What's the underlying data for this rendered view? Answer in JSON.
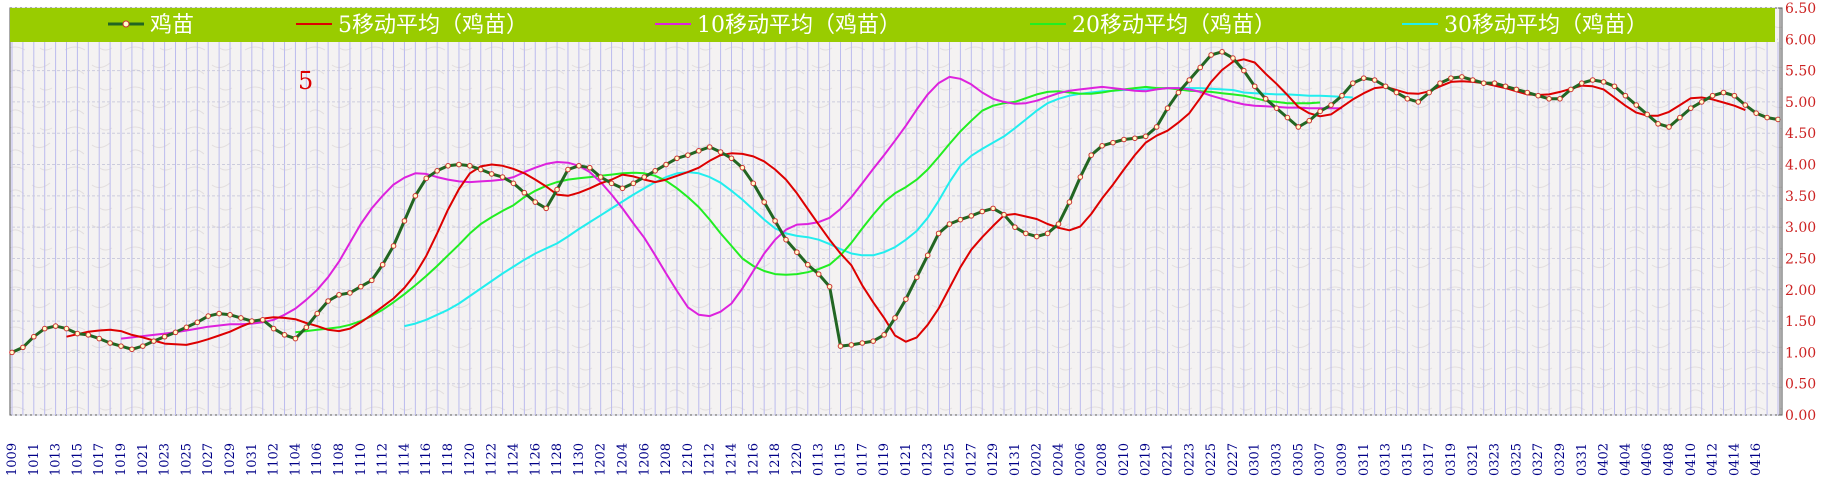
{
  "chart_data": {
    "type": "line",
    "annotation": "5",
    "ylim": [
      0,
      6.5
    ],
    "y_ticks": [
      "0.00",
      "0.50",
      "1.00",
      "1.50",
      "2.00",
      "2.50",
      "3.00",
      "3.50",
      "4.00",
      "4.50",
      "5.00",
      "5.50",
      "6.00",
      "6.50"
    ],
    "x_tick_labels": [
      "1009",
      "1011",
      "1013",
      "1015",
      "1017",
      "1019",
      "1021",
      "1023",
      "1025",
      "1027",
      "1029",
      "1031",
      "1102",
      "1104",
      "1106",
      "1108",
      "1110",
      "1112",
      "1114",
      "1116",
      "1118",
      "1120",
      "1122",
      "1124",
      "1126",
      "1128",
      "1130",
      "1202",
      "1204",
      "1206",
      "1208",
      "1210",
      "1212",
      "1214",
      "1216",
      "1218",
      "1220",
      "0113",
      "0115",
      "0117",
      "0119",
      "0121",
      "0123",
      "0125",
      "0127",
      "0129",
      "0131",
      "0202",
      "0204",
      "0206",
      "0208",
      "0210",
      "0219",
      "0221",
      "0223",
      "0225",
      "0227",
      "0301",
      "0303",
      "0305",
      "0307",
      "0309",
      "0311",
      "0313",
      "0315",
      "0317",
      "0319",
      "0321",
      "0323",
      "0325",
      "0327",
      "0329",
      "0331",
      "0402",
      "0404",
      "0406",
      "0408",
      "0410",
      "0412",
      "0414",
      "0416"
    ],
    "colors": {
      "band": "#99cc00",
      "grid": "#bbbbee",
      "axis_text": "#cc2222",
      "x_text": "#000088",
      "base": "#226622",
      "ma5": "#dd0000",
      "ma10": "#dd22dd",
      "ma20": "#22ee22",
      "ma30": "#22eeee"
    },
    "legend": [
      "鸡苗",
      "5移动平均（鸡苗）",
      "10移动平均（鸡苗）",
      "20移动平均（鸡苗）",
      "30移动平均（鸡苗）"
    ],
    "series": [
      {
        "name": "鸡苗",
        "color": "#226622",
        "values": [
          1.0,
          1.08,
          1.25,
          1.38,
          1.42,
          1.38,
          1.3,
          1.28,
          1.22,
          1.15,
          1.1,
          1.05,
          1.1,
          1.18,
          1.25,
          1.32,
          1.4,
          1.48,
          1.58,
          1.62,
          1.6,
          1.55,
          1.5,
          1.52,
          1.38,
          1.28,
          1.22,
          1.4,
          1.62,
          1.82,
          1.92,
          1.95,
          2.05,
          2.15,
          2.4,
          2.7,
          3.1,
          3.5,
          3.78,
          3.9,
          3.98,
          4.0,
          3.98,
          3.92,
          3.85,
          3.8,
          3.7,
          3.55,
          3.4,
          3.3,
          3.6,
          3.92,
          3.98,
          3.95,
          3.8,
          3.7,
          3.62,
          3.7,
          3.8,
          3.9,
          4.0,
          4.1,
          4.15,
          4.22,
          4.28,
          4.2,
          4.1,
          3.95,
          3.7,
          3.4,
          3.1,
          2.8,
          2.6,
          2.4,
          2.25,
          2.05,
          1.1,
          1.12,
          1.15,
          1.18,
          1.28,
          1.55,
          1.85,
          2.2,
          2.55,
          2.9,
          3.05,
          3.12,
          3.18,
          3.25,
          3.3,
          3.2,
          3.0,
          2.9,
          2.85,
          2.9,
          3.05,
          3.4,
          3.8,
          4.15,
          4.3,
          4.35,
          4.4,
          4.42,
          4.45,
          4.6,
          4.9,
          5.15,
          5.35,
          5.55,
          5.75,
          5.8,
          5.7,
          5.5,
          5.25,
          5.05,
          4.9,
          4.75,
          4.6,
          4.7,
          4.85,
          4.95,
          5.1,
          5.3,
          5.38,
          5.35,
          5.25,
          5.15,
          5.05,
          5.0,
          5.15,
          5.3,
          5.38,
          5.4,
          5.35,
          5.3,
          5.3,
          5.25,
          5.2,
          5.15,
          5.1,
          5.05,
          5.05,
          5.2,
          5.3,
          5.35,
          5.32,
          5.25,
          5.1,
          4.95,
          4.8,
          4.65,
          4.6,
          4.75,
          4.9,
          5.0,
          5.1,
          5.15,
          5.1,
          4.95,
          4.82,
          4.75,
          4.72
        ]
      },
      {
        "name": "5移动平均（鸡苗）",
        "color": "#dd0000",
        "start": 5,
        "values": [
          1.25,
          1.29,
          1.33,
          1.35,
          1.36,
          1.34,
          1.28,
          1.24,
          1.19,
          1.14,
          1.13,
          1.12,
          1.16,
          1.21,
          1.27,
          1.33,
          1.41,
          1.48,
          1.54,
          1.56,
          1.55,
          1.53,
          1.47,
          1.42,
          1.36,
          1.34,
          1.38,
          1.48,
          1.6,
          1.73,
          1.86,
          2.03,
          2.25,
          2.54,
          2.9,
          3.28,
          3.61,
          3.86,
          3.97,
          4.0,
          3.98,
          3.93,
          3.86,
          3.76,
          3.65,
          3.52,
          3.5,
          3.55,
          3.62,
          3.7,
          3.76,
          3.84,
          3.81,
          3.76,
          3.72,
          3.76,
          3.82,
          3.88,
          3.95,
          4.06,
          4.15,
          4.18,
          4.17,
          4.13,
          4.05,
          3.92,
          3.76,
          3.54,
          3.29,
          3.04,
          2.8,
          2.58,
          2.39,
          2.07,
          1.8,
          1.55,
          1.27,
          1.17,
          1.24,
          1.44,
          1.7,
          2.03,
          2.36,
          2.64,
          2.84,
          3.02,
          3.19,
          3.21,
          3.17,
          3.13,
          3.05,
          2.99,
          2.95,
          3.01,
          3.21,
          3.46,
          3.68,
          3.92,
          4.15,
          4.35,
          4.46,
          4.54,
          4.67,
          4.82,
          5.06,
          5.32,
          5.51,
          5.64,
          5.68,
          5.63,
          5.45,
          5.29,
          5.11,
          4.92,
          4.82,
          4.77,
          4.8,
          4.92,
          5.04,
          5.14,
          5.22,
          5.24,
          5.19,
          5.14,
          5.13,
          5.17,
          5.25,
          5.32,
          5.33,
          5.32,
          5.3,
          5.26,
          5.22,
          5.17,
          5.12,
          5.11,
          5.12,
          5.16,
          5.21,
          5.26,
          5.25,
          5.2,
          5.07,
          4.94,
          4.83,
          4.78,
          4.78,
          4.84,
          4.95,
          5.06,
          5.07,
          5.04,
          4.99,
          4.94,
          4.87
        ]
      },
      {
        "name": "10移动平均（鸡苗）",
        "color": "#dd22dd",
        "start": 10,
        "values": [
          1.22,
          1.24,
          1.26,
          1.28,
          1.3,
          1.32,
          1.35,
          1.38,
          1.41,
          1.43,
          1.45,
          1.45,
          1.46,
          1.48,
          1.52,
          1.6,
          1.7,
          1.84,
          2.0,
          2.2,
          2.45,
          2.75,
          3.05,
          3.3,
          3.5,
          3.68,
          3.79,
          3.86,
          3.85,
          3.8,
          3.76,
          3.73,
          3.72,
          3.73,
          3.74,
          3.76,
          3.8,
          3.88,
          3.95,
          4.01,
          4.04,
          4.03,
          3.98,
          3.88,
          3.72,
          3.52,
          3.3,
          3.06,
          2.83,
          2.55,
          2.26,
          1.98,
          1.72,
          1.6,
          1.58,
          1.65,
          1.78,
          2.02,
          2.3,
          2.58,
          2.8,
          2.96,
          3.04,
          3.05,
          3.08,
          3.15,
          3.29,
          3.48,
          3.7,
          3.93,
          4.15,
          4.38,
          4.62,
          4.88,
          5.12,
          5.3,
          5.4,
          5.37,
          5.28,
          5.15,
          5.05,
          5.0,
          4.97,
          4.98,
          5.02,
          5.08,
          5.14,
          5.18,
          5.2,
          5.22,
          5.24,
          5.22,
          5.2,
          5.18,
          5.17,
          5.2,
          5.22,
          5.22,
          5.2,
          5.16,
          5.1,
          5.05,
          5.0,
          4.96,
          4.94,
          4.93,
          4.92,
          4.91,
          4.91,
          4.9,
          4.9,
          4.9,
          4.9
        ]
      },
      {
        "name": "20移动平均（鸡苗）",
        "color": "#22ee22",
        "start": 26,
        "values": [
          1.32,
          1.34,
          1.36,
          1.38,
          1.4,
          1.44,
          1.5,
          1.58,
          1.68,
          1.8,
          1.93,
          2.07,
          2.22,
          2.38,
          2.55,
          2.72,
          2.9,
          3.05,
          3.16,
          3.26,
          3.35,
          3.48,
          3.58,
          3.66,
          3.72,
          3.76,
          3.78,
          3.8,
          3.82,
          3.84,
          3.86,
          3.87,
          3.86,
          3.82,
          3.74,
          3.62,
          3.48,
          3.32,
          3.12,
          2.9,
          2.7,
          2.5,
          2.38,
          2.3,
          2.25,
          2.24,
          2.25,
          2.28,
          2.33,
          2.4,
          2.55,
          2.75,
          2.98,
          3.2,
          3.4,
          3.54,
          3.64,
          3.76,
          3.92,
          4.12,
          4.33,
          4.53,
          4.7,
          4.86,
          4.94,
          4.98,
          5.0,
          5.06,
          5.12,
          5.16,
          5.17,
          5.15,
          5.13,
          5.13,
          5.15,
          5.18,
          5.2,
          5.22,
          5.24,
          5.22,
          5.22,
          5.2,
          5.18,
          5.17,
          5.16,
          5.14,
          5.12,
          5.1,
          5.06,
          5.02,
          5.0,
          4.98,
          4.98,
          4.98,
          4.99
        ]
      },
      {
        "name": "30移动平均（鸡苗）",
        "color": "#22eeee",
        "start": 36,
        "values": [
          1.42,
          1.46,
          1.52,
          1.6,
          1.68,
          1.78,
          1.9,
          2.02,
          2.14,
          2.26,
          2.37,
          2.48,
          2.58,
          2.66,
          2.74,
          2.85,
          2.97,
          3.08,
          3.19,
          3.3,
          3.41,
          3.52,
          3.62,
          3.72,
          3.8,
          3.86,
          3.88,
          3.86,
          3.8,
          3.71,
          3.58,
          3.44,
          3.28,
          3.12,
          2.98,
          2.9,
          2.86,
          2.84,
          2.8,
          2.73,
          2.65,
          2.58,
          2.55,
          2.55,
          2.6,
          2.68,
          2.8,
          2.94,
          3.15,
          3.42,
          3.72,
          3.98,
          4.14,
          4.25,
          4.35,
          4.45,
          4.58,
          4.72,
          4.86,
          4.98,
          5.05,
          5.1,
          5.13,
          5.15,
          5.17,
          5.18,
          5.19,
          5.19,
          5.2,
          5.21,
          5.22,
          5.22,
          5.22,
          5.22,
          5.21,
          5.2,
          5.19,
          5.15,
          5.14,
          5.13,
          5.12,
          5.12,
          5.11,
          5.1,
          5.1,
          5.09,
          5.08,
          5.07
        ]
      }
    ]
  }
}
